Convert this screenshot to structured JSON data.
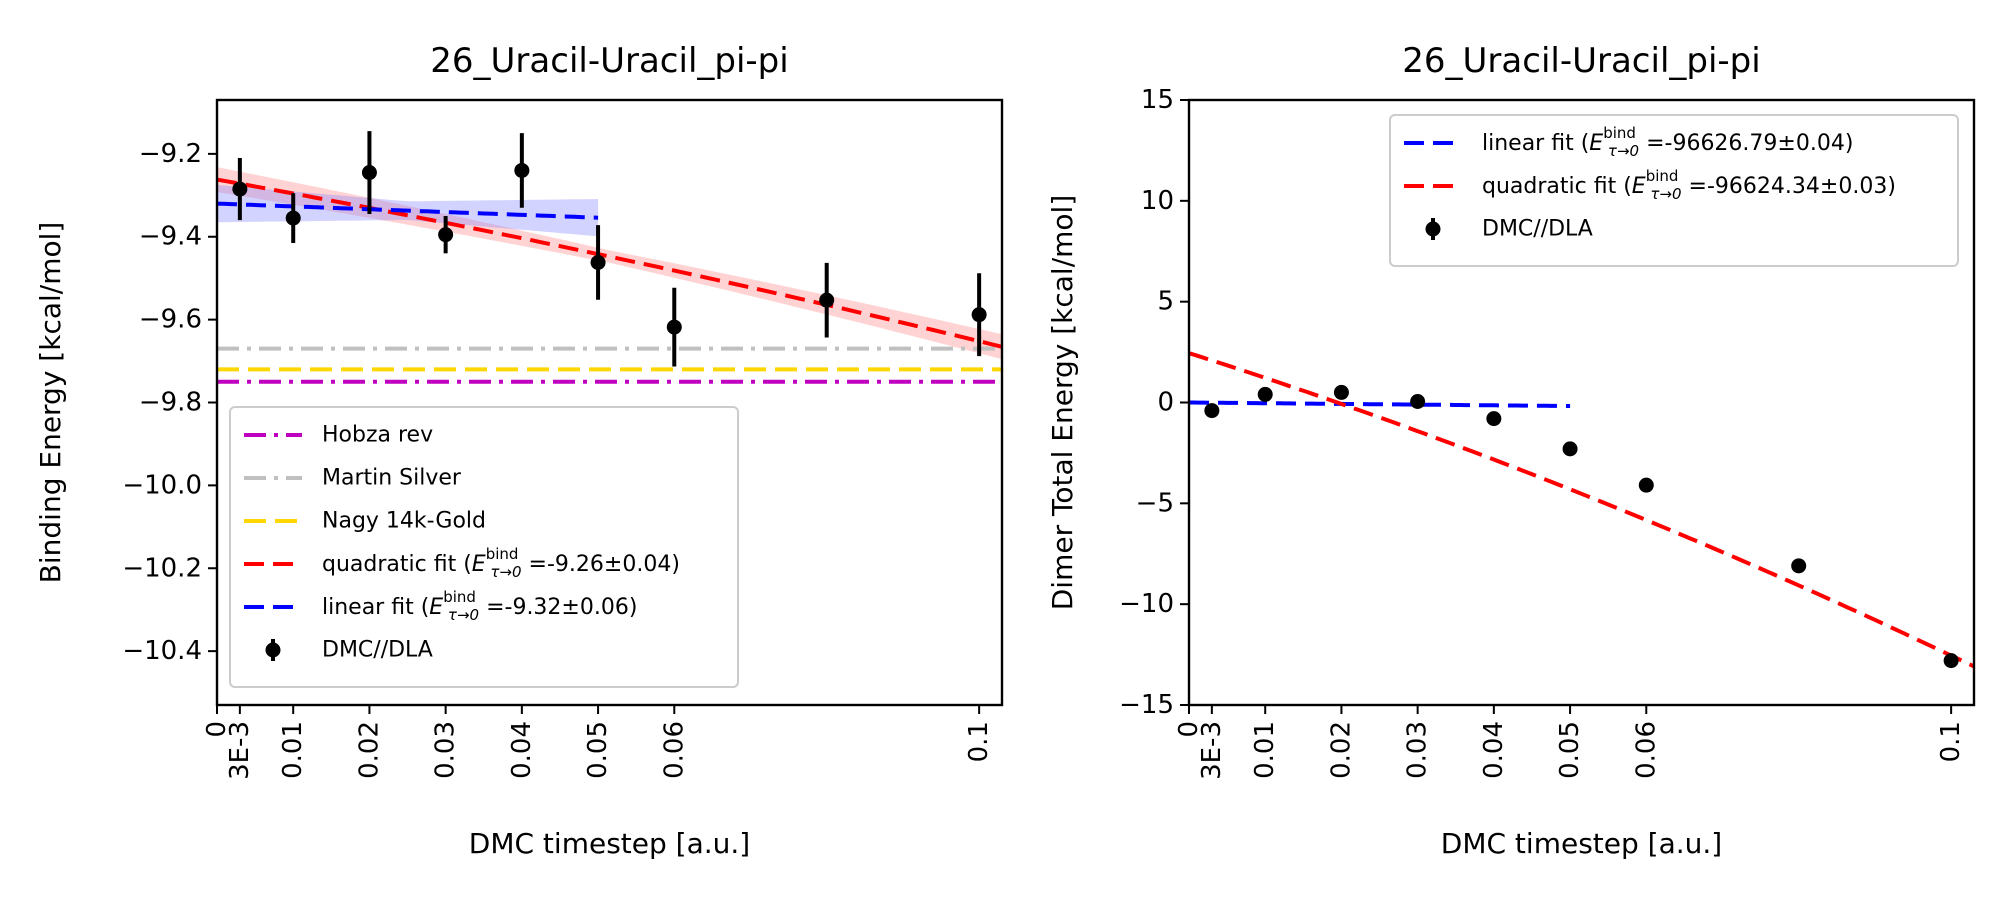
{
  "chart_data": [
    {
      "type": "scatter",
      "title": "26_Uracil-Uracil_pi-pi",
      "xlabel": "DMC timestep [a.u.]",
      "ylabel": "Binding Energy [kcal/mol]",
      "xlim": [
        0,
        0.103
      ],
      "ylim": [
        -10.53,
        -9.07
      ],
      "xticks": [
        0,
        0.003,
        0.01,
        0.02,
        0.03,
        0.04,
        0.05,
        0.06,
        0.1
      ],
      "xtick_labels": [
        "0",
        "3E-3",
        "0.01",
        "0.02",
        "0.03",
        "0.04",
        "0.05",
        "0.06",
        "0.1"
      ],
      "yticks": [
        -9.2,
        -9.4,
        -9.6,
        -9.8,
        -10.0,
        -10.2,
        -10.4
      ],
      "ytick_labels": [
        "−9.2",
        "−9.4",
        "−9.6",
        "−9.8",
        "−10.0",
        "−10.2",
        "−10.4"
      ],
      "legend_position": "lower-left",
      "points": {
        "name": "DMC//DLA",
        "x": [
          0.003,
          0.01,
          0.02,
          0.03,
          0.04,
          0.05,
          0.06,
          0.08,
          0.1
        ],
        "y": [
          -9.285,
          -9.355,
          -9.245,
          -9.395,
          -9.24,
          -9.462,
          -9.618,
          -9.553,
          -9.588
        ],
        "err": [
          0.075,
          0.06,
          0.1,
          0.045,
          0.09,
          0.09,
          0.095,
          0.09,
          0.1
        ]
      },
      "fits": [
        {
          "name": "quadratic fit",
          "label_value": " =-9.26±0.04)",
          "a": -9.262,
          "b": -3.3,
          "c": -6.0,
          "x_range": [
            0,
            0.103
          ],
          "band": 0.03,
          "color": "#ff0000",
          "band_color": "#ff8080"
        },
        {
          "name": "linear fit",
          "label_value": " =-9.32±0.06)",
          "a": -9.32,
          "b": -0.68,
          "c": 0,
          "x_range": [
            0,
            0.05
          ],
          "band": 0.045,
          "color": "#0000ff",
          "band_color": "#8080ff"
        }
      ],
      "reference_lines": [
        {
          "name": "Hobza rev",
          "value": -9.75,
          "color": "#bf00bf",
          "style": "dashdot"
        },
        {
          "name": "Martin Silver",
          "value": -9.67,
          "color": "#c0c0c0",
          "style": "dashdot"
        },
        {
          "name": "Nagy 14k-Gold",
          "value": -9.72,
          "color": "#ffd700",
          "style": "dashed"
        }
      ],
      "legend_order": [
        "Hobza rev",
        "Martin Silver",
        "Nagy 14k-Gold",
        "quadratic fit",
        "linear fit",
        "DMC//DLA"
      ]
    },
    {
      "type": "scatter",
      "title": "26_Uracil-Uracil_pi-pi",
      "xlabel": "DMC timestep [a.u.]",
      "ylabel": "Dimer Total Energy [kcal/mol]",
      "xlim": [
        0,
        0.103
      ],
      "ylim": [
        -15,
        15
      ],
      "xticks": [
        0,
        0.003,
        0.01,
        0.02,
        0.03,
        0.04,
        0.05,
        0.06,
        0.1
      ],
      "xtick_labels": [
        "0",
        "3E-3",
        "0.01",
        "0.02",
        "0.03",
        "0.04",
        "0.05",
        "0.06",
        "0.1"
      ],
      "yticks": [
        15,
        10,
        5,
        0,
        -5,
        -10,
        -15
      ],
      "ytick_labels": [
        "15",
        "10",
        "5",
        "0",
        "−5",
        "−10",
        "−15"
      ],
      "legend_position": "upper-right",
      "points": {
        "name": "DMC//DLA",
        "x": [
          0.003,
          0.01,
          0.02,
          0.03,
          0.04,
          0.05,
          0.06,
          0.08,
          0.1
        ],
        "y": [
          -0.4,
          0.4,
          0.5,
          0.05,
          -0.8,
          -2.3,
          -4.1,
          -8.1,
          -12.8
        ],
        "err": [
          0,
          0,
          0,
          0,
          0,
          0,
          0,
          0,
          0
        ]
      },
      "fits": [
        {
          "name": "linear fit",
          "label_value": " =-96626.79±0.04)",
          "a": 0.0,
          "b": -3.5,
          "c": 0,
          "x_range": [
            0,
            0.05
          ],
          "band": 0,
          "color": "#0000ff",
          "band_color": "#8080ff"
        },
        {
          "name": "quadratic fit",
          "label_value": " =-96624.34±0.03)",
          "a": 2.45,
          "b": -120.0,
          "c": -300.0,
          "x_range": [
            0,
            0.103
          ],
          "band": 0,
          "color": "#ff0000",
          "band_color": "#ff8080"
        }
      ],
      "reference_lines": [],
      "legend_order": [
        "linear fit",
        "quadratic fit",
        "DMC//DLA"
      ]
    }
  ],
  "legend_symbol": {
    "E": "E",
    "sup": "bind",
    "sub": "τ→0",
    "open": " ("
  }
}
